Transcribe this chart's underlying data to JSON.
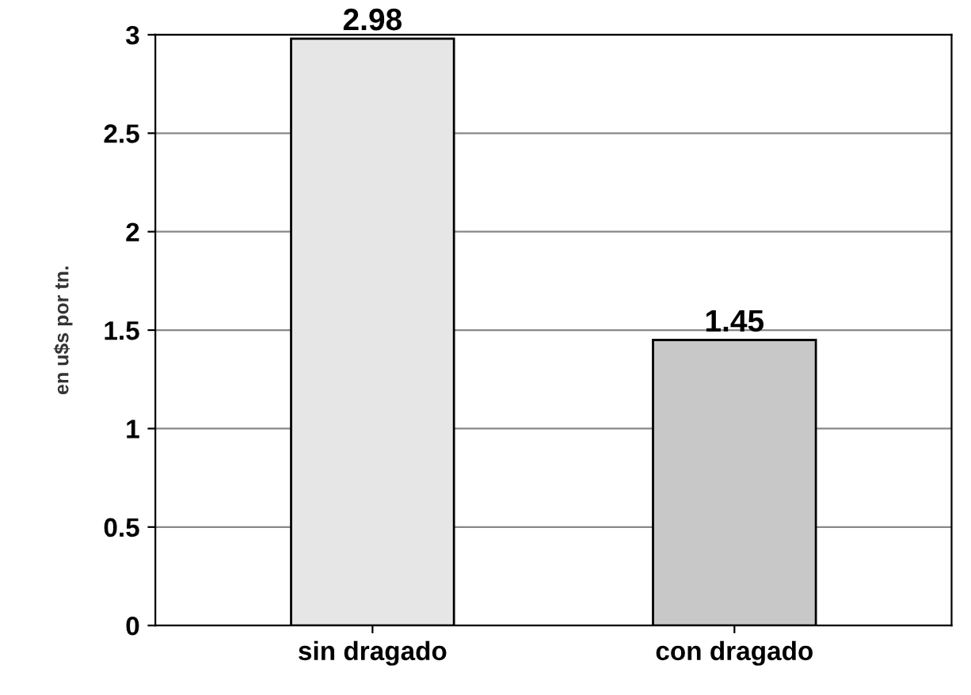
{
  "chart_data": {
    "type": "bar",
    "ylabel": "en u$s por tn.",
    "categories": [
      "sin dragado",
      "con dragado"
    ],
    "values": [
      2.98,
      1.45
    ],
    "colors": [
      "#e6e6e6",
      "#c8c8c8"
    ],
    "ylim": [
      0,
      3
    ],
    "yticks": [
      0,
      0.5,
      1,
      1.5,
      2,
      2.5,
      3
    ],
    "grid": "y",
    "data_labels": true
  }
}
